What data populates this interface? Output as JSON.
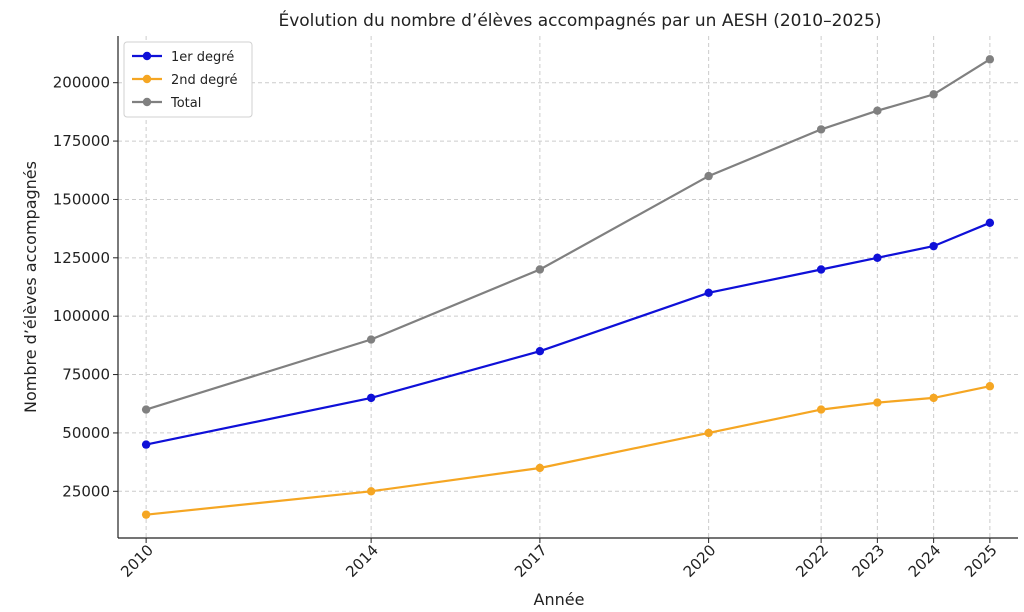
{
  "chart_data": {
    "type": "line",
    "title": "Évolution du nombre d’élèves accompagnés par un AESH (2010–2025)",
    "xlabel": "Année",
    "ylabel": "Nombre d’élèves accompagnés",
    "x": [
      2010,
      2014,
      2017,
      2020,
      2022,
      2023,
      2024,
      2025
    ],
    "x_tick_labels": [
      "2010",
      "2014",
      "2017",
      "2020",
      "2022",
      "2023",
      "2024",
      "2025"
    ],
    "y_ticks": [
      25000,
      50000,
      75000,
      100000,
      125000,
      150000,
      175000,
      200000
    ],
    "y_tick_labels": [
      "25000",
      "50000",
      "75000",
      "100000",
      "125000",
      "150000",
      "175000",
      "200000"
    ],
    "ylim": [
      5000,
      220000
    ],
    "xlim": [
      2009.5,
      2025.5
    ],
    "grid": true,
    "legend_position": "top-left",
    "series": [
      {
        "name": "1er degré",
        "color": "#0f10d8",
        "values": [
          45000,
          65000,
          85000,
          110000,
          120000,
          125000,
          130000,
          140000
        ]
      },
      {
        "name": "2nd degré",
        "color": "#f5a623",
        "values": [
          15000,
          25000,
          35000,
          50000,
          60000,
          63000,
          65000,
          70000
        ]
      },
      {
        "name": "Total",
        "color": "#808080",
        "values": [
          60000,
          90000,
          120000,
          160000,
          180000,
          188000,
          195000,
          210000
        ]
      }
    ]
  }
}
